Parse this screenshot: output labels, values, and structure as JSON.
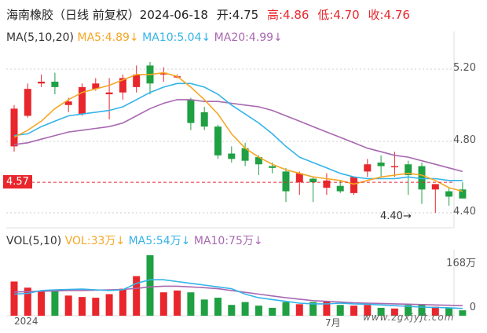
{
  "header": {
    "name": "海南橡胶（日线 前复权）",
    "date": "2024-06-18",
    "open": "开:4.75",
    "high": "高:4.86",
    "low": "低:4.70",
    "close": "收:4.76"
  },
  "ma_legend": {
    "title": "MA(5,10,20)",
    "ma5": "MA5:4.89↓",
    "ma10": "MA10:5.04↓",
    "ma20": "MA20:4.99↓"
  },
  "vol_legend": {
    "title": "VOL(5,10)",
    "vol": "VOL:33万↓",
    "ma5": "MA5:54万↓",
    "ma10": "MA10:75万↓"
  },
  "price_axis": [
    "5.20",
    "4.80",
    "4.40"
  ],
  "volume_axis": [
    "168万",
    "0"
  ],
  "x_axis": [
    "2024",
    "7月"
  ],
  "current_price_tag": "4.57",
  "low_marker": "4.40→",
  "watermark": "www.zgxjyjt.com",
  "colors": {
    "up": "#e8262c",
    "down": "#1fa043",
    "ma5": "#f5a623",
    "ma10": "#34b3e8",
    "ma20": "#a868b0",
    "grid": "#cccccc",
    "axis_text": "#555555"
  },
  "chart_data": {
    "type": "candlestick",
    "price_range": [
      4.3,
      5.3
    ],
    "volume_max": 168,
    "candles": [
      {
        "o": 4.77,
        "h": 5.0,
        "l": 4.74,
        "c": 4.98,
        "v": 95
      },
      {
        "o": 4.94,
        "h": 5.12,
        "l": 4.93,
        "c": 5.09,
        "v": 78
      },
      {
        "o": 5.12,
        "h": 5.17,
        "l": 5.1,
        "c": 5.13,
        "v": 70
      },
      {
        "o": 5.13,
        "h": 5.18,
        "l": 5.06,
        "c": 5.1,
        "v": 68
      },
      {
        "o": 5.0,
        "h": 5.04,
        "l": 4.96,
        "c": 5.02,
        "v": 56
      },
      {
        "o": 4.95,
        "h": 5.12,
        "l": 4.94,
        "c": 5.1,
        "v": 52
      },
      {
        "o": 5.09,
        "h": 5.15,
        "l": 5.08,
        "c": 5.12,
        "v": 50
      },
      {
        "o": 5.06,
        "h": 5.15,
        "l": 4.92,
        "c": 5.07,
        "v": 60
      },
      {
        "o": 5.07,
        "h": 5.17,
        "l": 5.03,
        "c": 5.15,
        "v": 75
      },
      {
        "o": 5.1,
        "h": 5.22,
        "l": 5.07,
        "c": 5.17,
        "v": 110
      },
      {
        "o": 5.22,
        "h": 5.24,
        "l": 5.06,
        "c": 5.12,
        "v": 168
      },
      {
        "o": 5.17,
        "h": 5.21,
        "l": 5.13,
        "c": 5.18,
        "v": 65
      },
      {
        "o": 5.16,
        "h": 5.17,
        "l": 5.15,
        "c": 5.16,
        "v": 70
      },
      {
        "o": 5.03,
        "h": 5.04,
        "l": 4.86,
        "c": 4.9,
        "v": 65
      },
      {
        "o": 4.96,
        "h": 4.99,
        "l": 4.86,
        "c": 4.88,
        "v": 45
      },
      {
        "o": 4.88,
        "h": 4.89,
        "l": 4.7,
        "c": 4.72,
        "v": 50
      },
      {
        "o": 4.73,
        "h": 4.77,
        "l": 4.68,
        "c": 4.7,
        "v": 30
      },
      {
        "o": 4.76,
        "h": 4.79,
        "l": 4.66,
        "c": 4.69,
        "v": 38
      },
      {
        "o": 4.71,
        "h": 4.72,
        "l": 4.61,
        "c": 4.67,
        "v": 28
      },
      {
        "o": 4.66,
        "h": 4.68,
        "l": 4.62,
        "c": 4.65,
        "v": 22
      },
      {
        "o": 4.63,
        "h": 4.65,
        "l": 4.46,
        "c": 4.52,
        "v": 38
      },
      {
        "o": 4.57,
        "h": 4.63,
        "l": 4.5,
        "c": 4.62,
        "v": 32
      },
      {
        "o": 4.59,
        "h": 4.6,
        "l": 4.46,
        "c": 4.57,
        "v": 38
      },
      {
        "o": 4.54,
        "h": 4.62,
        "l": 4.5,
        "c": 4.58,
        "v": 40
      },
      {
        "o": 4.55,
        "h": 4.58,
        "l": 4.51,
        "c": 4.52,
        "v": 30
      },
      {
        "o": 4.51,
        "h": 4.6,
        "l": 4.5,
        "c": 4.6,
        "v": 28
      },
      {
        "o": 4.63,
        "h": 4.7,
        "l": 4.6,
        "c": 4.67,
        "v": 30
      },
      {
        "o": 4.68,
        "h": 4.72,
        "l": 4.6,
        "c": 4.66,
        "v": 22
      },
      {
        "o": 4.66,
        "h": 4.74,
        "l": 4.6,
        "c": 4.66,
        "v": 20
      },
      {
        "o": 4.67,
        "h": 4.69,
        "l": 4.5,
        "c": 4.61,
        "v": 30
      },
      {
        "o": 4.66,
        "h": 4.68,
        "l": 4.45,
        "c": 4.53,
        "v": 32
      },
      {
        "o": 4.53,
        "h": 4.56,
        "l": 4.4,
        "c": 4.56,
        "v": 25
      },
      {
        "o": 4.52,
        "h": 4.54,
        "l": 4.44,
        "c": 4.49,
        "v": 22
      },
      {
        "o": 4.53,
        "h": 4.57,
        "l": 4.48,
        "c": 4.48,
        "v": 15
      }
    ],
    "ma5": [
      4.82,
      4.86,
      4.91,
      4.98,
      5.03,
      5.07,
      5.09,
      5.11,
      5.14,
      5.17,
      5.17,
      5.18,
      5.16,
      5.1,
      5.03,
      4.95,
      4.84,
      4.76,
      4.71,
      4.67,
      4.64,
      4.62,
      4.6,
      4.59,
      4.58,
      4.56,
      4.58,
      4.6,
      4.61,
      4.62,
      4.61,
      4.58,
      4.54,
      4.52
    ],
    "ma10": [
      4.83,
      4.84,
      4.88,
      4.91,
      4.94,
      4.95,
      4.96,
      4.97,
      4.99,
      5.03,
      5.07,
      5.1,
      5.12,
      5.12,
      5.1,
      5.06,
      5.0,
      4.95,
      4.9,
      4.84,
      4.77,
      4.71,
      4.68,
      4.65,
      4.62,
      4.6,
      4.59,
      4.59,
      4.59,
      4.6,
      4.59,
      4.59,
      4.58,
      4.58
    ],
    "ma20": [
      4.78,
      4.79,
      4.81,
      4.83,
      4.85,
      4.86,
      4.87,
      4.88,
      4.9,
      4.94,
      4.98,
      5.01,
      5.03,
      5.03,
      5.02,
      5.02,
      5.01,
      5.0,
      4.99,
      4.97,
      4.94,
      4.91,
      4.88,
      4.85,
      4.82,
      4.79,
      4.76,
      4.74,
      4.72,
      4.71,
      4.69,
      4.67,
      4.65,
      4.63
    ],
    "vol_ma5": [
      60,
      62,
      70,
      72,
      73,
      74,
      72,
      70,
      72,
      90,
      100,
      100,
      95,
      90,
      85,
      80,
      75,
      60,
      50,
      45,
      40,
      35,
      33,
      33,
      35,
      33,
      32,
      30,
      28,
      26,
      24,
      23,
      22,
      20
    ],
    "vol_ma10": [
      66,
      67,
      68,
      69,
      70,
      70,
      71,
      72,
      73,
      76,
      80,
      82,
      82,
      80,
      78,
      75,
      70,
      65,
      60,
      55,
      50,
      46,
      42,
      40,
      38,
      36,
      35,
      34,
      33,
      32,
      31,
      30,
      29,
      28
    ]
  }
}
